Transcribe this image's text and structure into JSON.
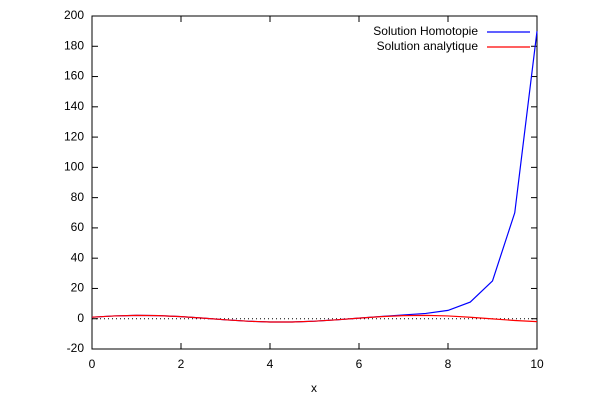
{
  "chart_data": {
    "type": "line",
    "xlabel": "x",
    "x": [
      0,
      0.5,
      1,
      1.5,
      2,
      2.5,
      3,
      3.5,
      4,
      4.5,
      5,
      5.5,
      6,
      6.5,
      7,
      7.5,
      8,
      8.5,
      9,
      9.5,
      10
    ],
    "series": [
      {
        "name": "Solution Homotopie",
        "color": "#0000ff",
        "values": [
          1,
          1.84,
          2.22,
          2.07,
          1.4,
          0.4,
          -0.71,
          -1.64,
          -2.17,
          -2.17,
          -1.63,
          -0.7,
          0.42,
          1.5,
          2.5,
          3.5,
          5.5,
          11,
          25,
          70,
          190
        ]
      },
      {
        "name": "Solution analytique",
        "color": "#ff0000",
        "values": [
          1,
          1.84,
          2.22,
          2.07,
          1.4,
          0.4,
          -0.71,
          -1.64,
          -2.17,
          -2.17,
          -1.63,
          -0.7,
          0.4,
          1.41,
          2.07,
          2.23,
          1.83,
          0.99,
          -0.09,
          -1.15,
          -1.93
        ]
      }
    ],
    "xlim": [
      0,
      10
    ],
    "xticks": [
      0,
      2,
      4,
      6,
      8,
      10
    ],
    "ylim": [
      -20,
      200
    ],
    "yticks": [
      -20,
      0,
      20,
      40,
      60,
      80,
      100,
      120,
      140,
      160,
      180,
      200
    ],
    "zero_line": true,
    "legend": "top-right"
  }
}
